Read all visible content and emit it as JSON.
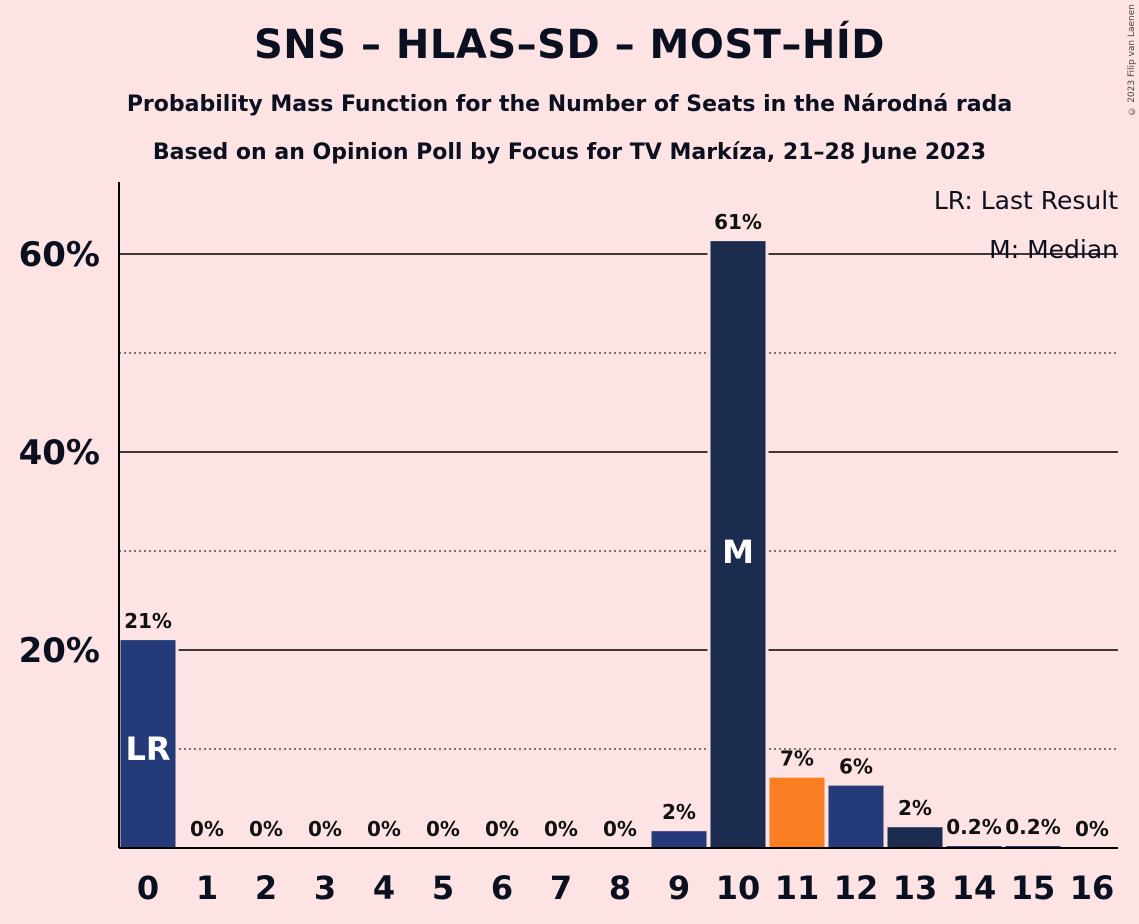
{
  "title": "SNS – HLAS–SD – MOST–HÍD",
  "subtitle1": "Probability Mass Function for the Number of Seats in the Národná rada",
  "subtitle2": "Based on an Opinion Poll by Focus for TV Markíza, 21–28 June 2023",
  "copyright": "© 2023 Filip van Laenen",
  "legend": {
    "last_result": "LR: Last Result",
    "median": "M: Median"
  },
  "colors": {
    "background": "#FDE3E4",
    "bar": "#253A78",
    "median_bar": "#1B2C4F",
    "highlight": "#F97D21",
    "dark": "#1B2C4F"
  },
  "chart_data": {
    "type": "bar",
    "categories": [
      "0",
      "1",
      "2",
      "3",
      "4",
      "5",
      "6",
      "7",
      "8",
      "9",
      "10",
      "11",
      "12",
      "13",
      "14",
      "15",
      "16"
    ],
    "values": [
      21,
      0,
      0,
      0,
      0,
      0,
      0,
      0,
      0,
      1.7,
      61.3,
      7.1,
      6.3,
      2.1,
      0.2,
      0.2,
      0
    ],
    "value_labels": [
      "21%",
      "0%",
      "0%",
      "0%",
      "0%",
      "0%",
      "0%",
      "0%",
      "0%",
      "2%",
      "61%",
      "7%",
      "6%",
      "2%",
      "0.2%",
      "0.2%",
      "0%"
    ],
    "bar_colors": [
      "#253A78",
      "#253A78",
      "#253A78",
      "#253A78",
      "#253A78",
      "#253A78",
      "#253A78",
      "#253A78",
      "#253A78",
      "#253A78",
      "#1B2C4F",
      "#F97D21",
      "#253A78",
      "#1B2C4F",
      "#253A78",
      "#253A78",
      "#253A78"
    ],
    "in_bar_markers": [
      {
        "category": "0",
        "text": "LR"
      },
      {
        "category": "10",
        "text": "M"
      }
    ],
    "ylim": [
      0,
      67
    ],
    "y_ticks": [
      {
        "value": 20,
        "label": "20%"
      },
      {
        "value": 40,
        "label": "40%"
      },
      {
        "value": 60,
        "label": "60%"
      }
    ],
    "minor_grid": [
      10,
      30,
      50
    ],
    "grid": true,
    "legend_position": "top-right"
  }
}
